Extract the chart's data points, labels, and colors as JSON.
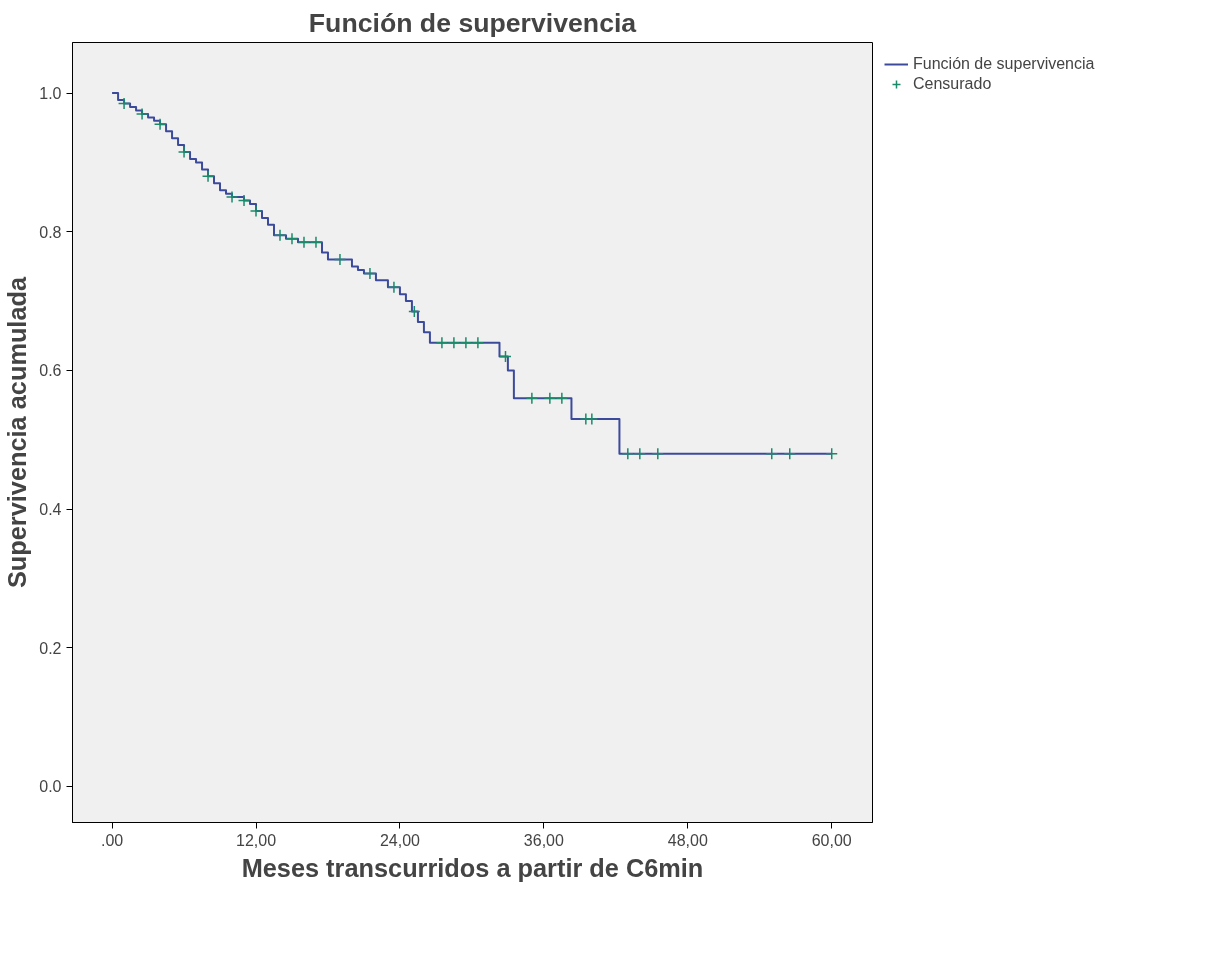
{
  "chart_data": {
    "type": "step",
    "title": "Función de supervivencia",
    "xlabel": "Meses transcurridos a partir de C6min",
    "ylabel": "Supervivencia acumulada",
    "xlim": [
      -3.3,
      63.4
    ],
    "ylim": [
      -0.052,
      1.073
    ],
    "xticks": [
      {
        "value": 0,
        "label": ".00"
      },
      {
        "value": 12,
        "label": "12,00"
      },
      {
        "value": 24,
        "label": "24,00"
      },
      {
        "value": 36,
        "label": "36,00"
      },
      {
        "value": 48,
        "label": "48,00"
      },
      {
        "value": 60,
        "label": "60,00"
      }
    ],
    "yticks": [
      {
        "value": 0,
        "label": "0.0"
      },
      {
        "value": 0.2,
        "label": "0.2"
      },
      {
        "value": 0.4,
        "label": "0.4"
      },
      {
        "value": 0.6,
        "label": "0.6"
      },
      {
        "value": 0.8,
        "label": "0.8"
      },
      {
        "value": 1,
        "label": "1.0"
      }
    ],
    "grid": false,
    "legend": "top right",
    "line_style": "solid",
    "series": [
      {
        "name": "Función de supervivencia",
        "color": "#3c4a9c",
        "x": [
          0,
          0.5,
          1,
          1.5,
          2,
          2.5,
          3,
          3.5,
          4,
          4.5,
          5,
          5.5,
          6,
          6.5,
          7,
          7.5,
          8,
          8.5,
          9,
          9.5,
          10,
          11,
          11.5,
          12,
          12.5,
          13,
          13.5,
          14.5,
          15.5,
          17.5,
          18,
          20,
          20.5,
          21,
          22,
          23,
          24,
          24.5,
          25,
          25.5,
          26,
          26.5,
          32.3,
          33,
          33.5,
          38.3,
          42.3,
          60
        ],
        "values": [
          1.0,
          0.99,
          0.985,
          0.98,
          0.975,
          0.97,
          0.965,
          0.96,
          0.955,
          0.945,
          0.935,
          0.925,
          0.915,
          0.905,
          0.9,
          0.89,
          0.88,
          0.87,
          0.86,
          0.855,
          0.85,
          0.845,
          0.84,
          0.83,
          0.82,
          0.81,
          0.795,
          0.79,
          0.785,
          0.77,
          0.76,
          0.75,
          0.745,
          0.74,
          0.73,
          0.72,
          0.71,
          0.7,
          0.685,
          0.67,
          0.655,
          0.64,
          0.62,
          0.6,
          0.56,
          0.53,
          0.48,
          0.48
        ]
      },
      {
        "name": "Censurado",
        "type": "scatter",
        "marker": "cross",
        "color": "#1b8a6b",
        "x": [
          1,
          2.5,
          4,
          6,
          8,
          10,
          11,
          12,
          14,
          15,
          16,
          17,
          19,
          21.5,
          23.5,
          25.2,
          27.5,
          28.5,
          29.5,
          30.5,
          32.8,
          35,
          36.5,
          37.5,
          39.5,
          40,
          43,
          44,
          45.5,
          55,
          56.5,
          60
        ],
        "values": [
          0.985,
          0.97,
          0.955,
          0.915,
          0.88,
          0.85,
          0.845,
          0.83,
          0.795,
          0.79,
          0.785,
          0.785,
          0.76,
          0.74,
          0.72,
          0.685,
          0.64,
          0.64,
          0.64,
          0.64,
          0.62,
          0.56,
          0.56,
          0.56,
          0.53,
          0.53,
          0.48,
          0.48,
          0.48,
          0.48,
          0.48,
          0.48
        ]
      }
    ]
  }
}
